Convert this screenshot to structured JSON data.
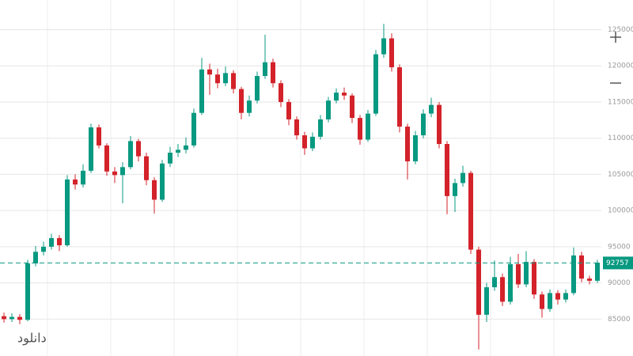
{
  "chart_data": {
    "type": "candlestick",
    "ylim": [
      79900,
      129100
    ],
    "yticks": [
      85000,
      90000,
      95000,
      100000,
      105000,
      110000,
      115000,
      120000,
      125000
    ],
    "grid": true,
    "up_color": "#089981",
    "down_color": "#d3222a",
    "open": [
      85400,
      85000,
      85300,
      84900,
      92700,
      94300,
      95000,
      96200,
      95200,
      104300,
      103600,
      105500,
      111500,
      109000,
      105400,
      104900,
      106000,
      109600,
      107500,
      104200,
      101500,
      106500,
      108000,
      108400,
      109000,
      113500,
      119500,
      118800,
      117600,
      119000,
      116800,
      113500,
      115200,
      118600,
      120500,
      117600,
      115000,
      112600,
      110400,
      108600,
      110200,
      112600,
      115200,
      116300,
      115900,
      112800,
      109800,
      113400,
      121600,
      123800,
      119800,
      111600,
      106800,
      110400,
      113400,
      114600,
      109200,
      102000,
      103800,
      105200,
      94600,
      85600,
      89400,
      90800,
      87400,
      92600,
      89800,
      92900,
      88400,
      86400,
      88600,
      87700,
      88600,
      93800,
      90600,
      90300
    ],
    "high": [
      85900,
      85800,
      85700,
      93200,
      95100,
      95700,
      96800,
      96600,
      104900,
      105000,
      106400,
      112000,
      111900,
      109300,
      106000,
      106700,
      110300,
      109900,
      108000,
      104600,
      107000,
      108800,
      109200,
      110100,
      114100,
      121100,
      120300,
      119600,
      119900,
      119400,
      117100,
      115900,
      119200,
      124300,
      121000,
      118000,
      115400,
      113000,
      110900,
      110800,
      113200,
      115700,
      116900,
      117000,
      116200,
      113200,
      113900,
      122200,
      125800,
      124500,
      120200,
      112000,
      111000,
      114000,
      115600,
      115000,
      109600,
      104400,
      106200,
      105500,
      95000,
      90000,
      93100,
      91300,
      93600,
      94000,
      94400,
      93300,
      88800,
      89100,
      89000,
      89100,
      94900,
      94300,
      91000,
      93200
    ],
    "low": [
      84500,
      84600,
      84300,
      84700,
      92300,
      93800,
      94600,
      94400,
      95000,
      102900,
      103200,
      105200,
      108600,
      104800,
      103800,
      101000,
      105700,
      106800,
      103500,
      99600,
      101200,
      106000,
      107400,
      107900,
      108700,
      113200,
      116000,
      116900,
      117200,
      116200,
      112600,
      113000,
      114800,
      118200,
      117000,
      114300,
      111800,
      109800,
      107700,
      108200,
      109800,
      112200,
      114800,
      115300,
      112100,
      109100,
      109500,
      113100,
      121100,
      119200,
      110800,
      104300,
      106400,
      110000,
      112900,
      108600,
      99500,
      99800,
      103300,
      94000,
      80800,
      84600,
      88900,
      86800,
      87000,
      89300,
      89400,
      87800,
      85200,
      86000,
      87000,
      87300,
      88300,
      90100,
      89800,
      90000
    ],
    "close": [
      85000,
      85300,
      84900,
      92700,
      94300,
      95000,
      96200,
      95200,
      104300,
      103600,
      105500,
      111500,
      109000,
      105400,
      104900,
      106000,
      109600,
      107500,
      104200,
      101500,
      106500,
      108000,
      108400,
      109000,
      113500,
      119500,
      118800,
      117600,
      119000,
      116800,
      113500,
      115200,
      118600,
      120500,
      117600,
      115000,
      112600,
      110400,
      108600,
      110200,
      112600,
      115200,
      116300,
      115900,
      112800,
      109800,
      113400,
      121600,
      123800,
      119800,
      111600,
      106800,
      110400,
      113400,
      114600,
      109200,
      102000,
      103800,
      105200,
      94600,
      85600,
      89400,
      90800,
      87400,
      92600,
      89800,
      92900,
      88400,
      86400,
      88600,
      87700,
      88600,
      93800,
      90600,
      90300,
      92800
    ],
    "last_price": 92757,
    "watermark": "دانلود"
  }
}
